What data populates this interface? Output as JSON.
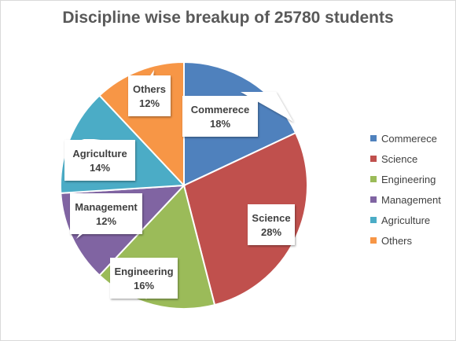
{
  "chart_data": {
    "type": "pie",
    "title": "Discipline wise breakup of 25780 students",
    "categories": [
      "Commerece",
      "Science",
      "Engineering",
      "Management",
      "Agriculture",
      "Others"
    ],
    "values": [
      18,
      28,
      16,
      12,
      14,
      12
    ],
    "labels": [
      "18%",
      "28%",
      "16%",
      "12%",
      "14%",
      "12%"
    ],
    "colors": [
      "#4f81bd",
      "#c0504d",
      "#9bbb59",
      "#8064a2",
      "#4bacc6",
      "#f79646"
    ],
    "start_angle": "12 o'clock, clockwise",
    "legend_position": "right",
    "data_label_style": "callout"
  }
}
